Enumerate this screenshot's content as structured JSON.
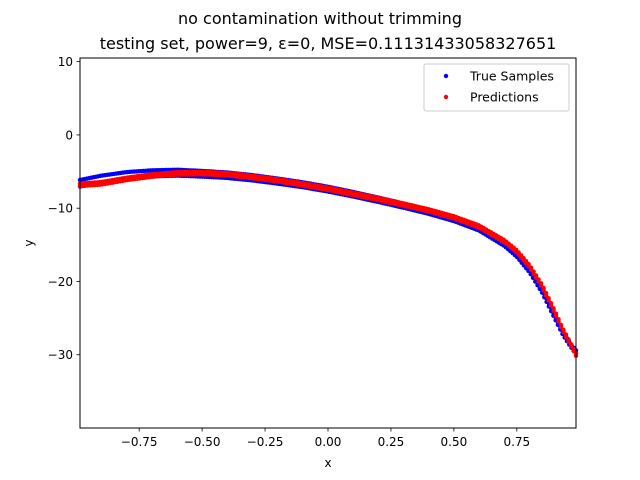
{
  "chart_data": {
    "type": "scatter",
    "title": "no contamination without trimming",
    "subtitle": "testing set, power=9, ε=0, MSE=0.11131433058327651",
    "xlabel": "x",
    "ylabel": "y",
    "xlim": [
      -0.985,
      0.985
    ],
    "ylim": [
      -40,
      10.5
    ],
    "xticks": [
      -0.75,
      -0.5,
      -0.25,
      0.0,
      0.25,
      0.5,
      0.75
    ],
    "xtick_labels": [
      "−0.75",
      "−0.50",
      "−0.25",
      "0.00",
      "0.25",
      "0.50",
      "0.75"
    ],
    "yticks": [
      10,
      0,
      -10,
      -20,
      -30
    ],
    "ytick_labels": [
      "10",
      "0",
      "−10",
      "−20",
      "−30"
    ],
    "grid": false,
    "legend_position": "top-right",
    "series": [
      {
        "name": "True Samples",
        "color": "#0000ff",
        "band_width": [
          0.9,
          0.4
        ],
        "x": [
          -0.985,
          -0.9,
          -0.8,
          -0.7,
          -0.6,
          -0.5,
          -0.4,
          -0.3,
          -0.2,
          -0.1,
          0.0,
          0.1,
          0.2,
          0.3,
          0.4,
          0.5,
          0.6,
          0.7,
          0.75,
          0.8,
          0.85,
          0.9,
          0.93,
          0.95,
          0.97,
          0.985
        ],
        "y": [
          -6.6,
          -6.0,
          -5.5,
          -5.25,
          -5.15,
          -5.3,
          -5.5,
          -5.85,
          -6.3,
          -6.8,
          -7.4,
          -8.1,
          -8.85,
          -9.65,
          -10.5,
          -11.5,
          -12.8,
          -14.9,
          -16.4,
          -18.5,
          -21.3,
          -24.8,
          -26.9,
          -28.0,
          -29.0,
          -29.6
        ]
      },
      {
        "name": "Predictions",
        "color": "#ff0000",
        "band_width": [
          0.35,
          0.3
        ],
        "x": [
          -0.985,
          -0.9,
          -0.8,
          -0.7,
          -0.6,
          -0.5,
          -0.4,
          -0.3,
          -0.2,
          -0.1,
          0.0,
          0.1,
          0.2,
          0.3,
          0.4,
          0.5,
          0.6,
          0.7,
          0.75,
          0.8,
          0.85,
          0.9,
          0.93,
          0.95,
          0.97,
          0.985
        ],
        "y": [
          -6.8,
          -6.6,
          -6.0,
          -5.55,
          -5.25,
          -5.2,
          -5.35,
          -5.75,
          -6.2,
          -6.75,
          -7.35,
          -8.05,
          -8.75,
          -9.5,
          -10.3,
          -11.25,
          -12.5,
          -14.5,
          -15.9,
          -17.9,
          -20.6,
          -24.1,
          -26.4,
          -27.7,
          -29.0,
          -30.0
        ]
      }
    ]
  }
}
